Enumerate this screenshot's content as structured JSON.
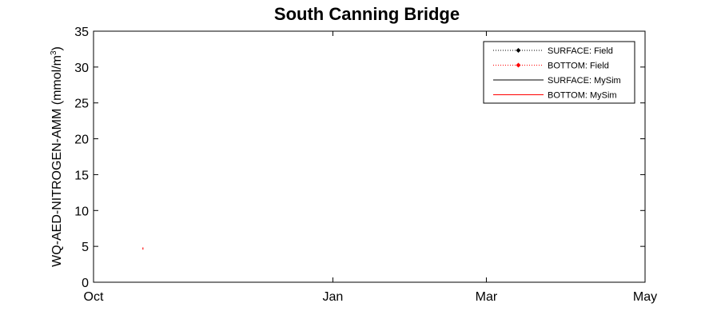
{
  "chart_data": {
    "type": "line",
    "title": "South Canning Bridge",
    "ylabel": "WQ-AED-NITROGEN-AMM (mmol/m",
    "ylabel_sup": "3",
    "ylabel_close": ")",
    "xlabel": "",
    "ylim": [
      0,
      35
    ],
    "yticks": [
      0,
      5,
      10,
      15,
      20,
      25,
      30,
      35
    ],
    "xlim": [
      "Oct",
      "May"
    ],
    "xticks": [
      {
        "label": "Oct",
        "day": 0
      },
      {
        "label": "Jan",
        "day": 92
      },
      {
        "label": "Mar",
        "day": 151
      },
      {
        "label": "May",
        "day": 212
      }
    ],
    "grid": false,
    "legend_position": "top-right",
    "series": [
      {
        "name": "SURFACE: Field",
        "color": "#000000",
        "style": "dotted-marker",
        "points": []
      },
      {
        "name": "BOTTOM: Field",
        "color": "#ff0000",
        "style": "dotted-marker",
        "points": []
      },
      {
        "name": "SURFACE: MySim",
        "color": "#000000",
        "style": "solid",
        "points": []
      },
      {
        "name": "BOTTOM: MySim",
        "color": "#ff0000",
        "style": "solid",
        "points": [
          {
            "day": 19,
            "y": 4.6
          },
          {
            "day": 19,
            "y": 4.8
          }
        ]
      }
    ]
  }
}
